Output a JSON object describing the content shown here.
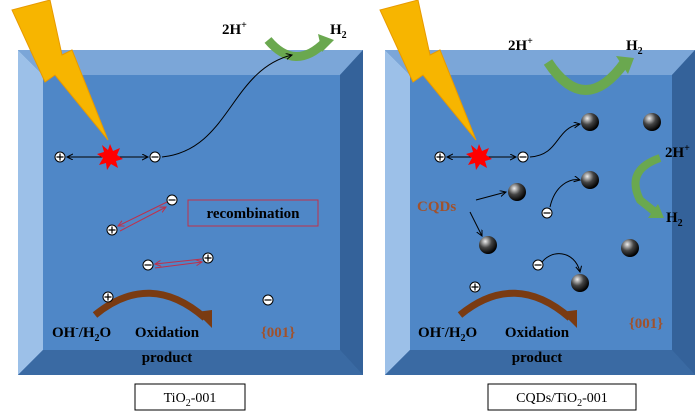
{
  "panels": [
    {
      "caption": {
        "a": "TiO",
        "sub": "2",
        "b": "-001"
      },
      "protons": [
        {
          "text": "2H",
          "sup": "+"
        }
      ],
      "hydrogens": [
        {
          "text": "H",
          "sub": "2"
        }
      ],
      "recombination": "recombination",
      "reactant": {
        "a": "OH",
        "sup": "-",
        "b": "/H",
        "sub": "2",
        "c": "O"
      },
      "product": [
        "Oxidation",
        "product"
      ],
      "facet": "{001}"
    },
    {
      "caption": {
        "a": "CQDs/TiO",
        "sub": "2",
        "b": "-001"
      },
      "protons": [
        {
          "text": "2H",
          "sup": "+"
        },
        {
          "text": "2H",
          "sup": "+"
        }
      ],
      "hydrogens": [
        {
          "text": "H",
          "sub": "2"
        },
        {
          "text": "H",
          "sub": "2"
        }
      ],
      "cqds": "CQDs",
      "reactant": {
        "a": "OH",
        "sup": "-",
        "b": "/H",
        "sub": "2",
        "c": "O"
      },
      "product": [
        "Oxidation",
        "product"
      ],
      "facet": "{001}"
    }
  ]
}
